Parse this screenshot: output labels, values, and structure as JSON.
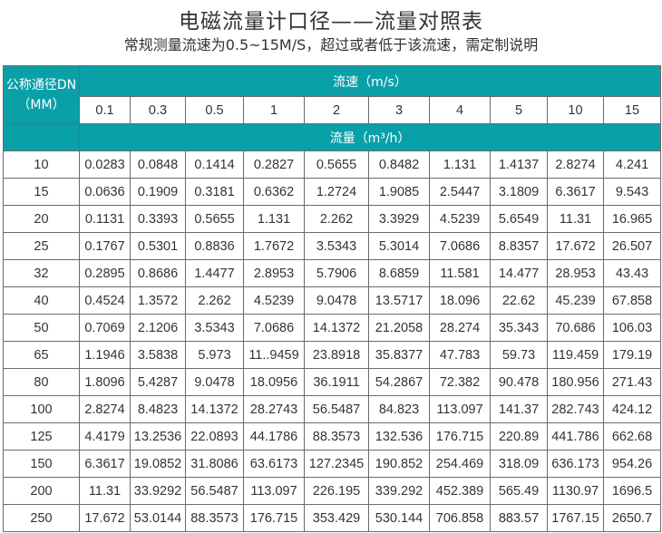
{
  "title": "电磁流量计口径——流量对照表",
  "subtitle": "常规测量流速为0.5~15M/S，超过或者低于该流速，需定制说明",
  "header": {
    "dn_label_line1": "公称通径DN",
    "dn_label_line2": "（MM）",
    "velocity_label": "流速（m/s）",
    "flow_label": "流量（m³/h）",
    "velocities": [
      "0.1",
      "0.3",
      "0.5",
      "1",
      "2",
      "3",
      "4",
      "5",
      "10",
      "15"
    ]
  },
  "colors": {
    "header_bg": "#0aa0a8",
    "header_text": "#ffffff"
  },
  "rows": [
    {
      "dn": "10",
      "values": [
        "0.0283",
        "0.0848",
        "0.1414",
        "0.2827",
        "0.5655",
        "0.8482",
        "1.131",
        "1.4137",
        "2.8274",
        "4.241"
      ]
    },
    {
      "dn": "15",
      "values": [
        "0.0636",
        "0.1909",
        "0.3181",
        "0.6362",
        "1.2724",
        "1.9085",
        "2.5447",
        "3.1809",
        "6.3617",
        "9.543"
      ]
    },
    {
      "dn": "20",
      "values": [
        "0.1131",
        "0.3393",
        "0.5655",
        "1.131",
        "2.262",
        "3.3929",
        "4.5239",
        "5.6549",
        "11.31",
        "16.965"
      ]
    },
    {
      "dn": "25",
      "values": [
        "0.1767",
        "0.5301",
        "0.8836",
        "1.7672",
        "3.5343",
        "5.3014",
        "7.0686",
        "8.8357",
        "17.672",
        "26.507"
      ]
    },
    {
      "dn": "32",
      "values": [
        "0.2895",
        "0.8686",
        "1.4477",
        "2.8953",
        "5.7906",
        "8.6859",
        "11.581",
        "14.477",
        "28.953",
        "43.43"
      ]
    },
    {
      "dn": "40",
      "values": [
        "0.4524",
        "1.3572",
        "2.262",
        "4.5239",
        "9.0478",
        "13.5717",
        "18.096",
        "22.62",
        "45.239",
        "67.858"
      ]
    },
    {
      "dn": "50",
      "values": [
        "0.7069",
        "2.1206",
        "3.5343",
        "7.0686",
        "14.1372",
        "21.2058",
        "28.274",
        "35.343",
        "70.686",
        "106.03"
      ]
    },
    {
      "dn": "65",
      "values": [
        "1.1946",
        "3.5838",
        "5.973",
        "11..9459",
        "23.8918",
        "35.8377",
        "47.783",
        "59.73",
        "119.459",
        "179.19"
      ]
    },
    {
      "dn": "80",
      "values": [
        "1.8096",
        "5.4287",
        "9.0478",
        "18.0956",
        "36.1911",
        "54.2867",
        "72.382",
        "90.478",
        "180.956",
        "271.43"
      ]
    },
    {
      "dn": "100",
      "values": [
        "2.8274",
        "8.4823",
        "14.1372",
        "28.2743",
        "56.5487",
        "84.823",
        "113.097",
        "141.37",
        "282.743",
        "424.12"
      ]
    },
    {
      "dn": "125",
      "values": [
        "4.4179",
        "13.2536",
        "22.0893",
        "44.1786",
        "88.3573",
        "132.536",
        "176.715",
        "220.89",
        "441.786",
        "662.68"
      ]
    },
    {
      "dn": "150",
      "values": [
        "6.3617",
        "19.0852",
        "31.8086",
        "63.6173",
        "127.2345",
        "190.852",
        "254.469",
        "318.09",
        "636.173",
        "954.26"
      ]
    },
    {
      "dn": "200",
      "values": [
        "11.31",
        "33.9292",
        "56.5487",
        "113.097",
        "226.195",
        "339.292",
        "452.389",
        "565.49",
        "1130.97",
        "1696.5"
      ]
    },
    {
      "dn": "250",
      "values": [
        "17.672",
        "53.0144",
        "88.3573",
        "176.715",
        "353.429",
        "530.144",
        "706.858",
        "883.57",
        "1767.15",
        "2650.7"
      ]
    }
  ]
}
